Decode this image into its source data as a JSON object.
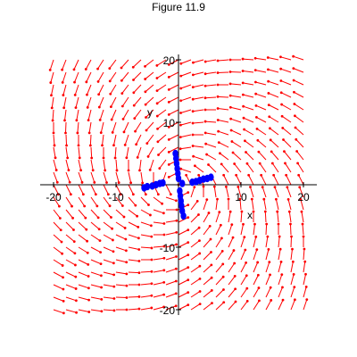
{
  "figure_title": "Figure 11.9",
  "chart_data": {
    "type": "scatter",
    "title": "Figure 11.9",
    "xlabel": "x",
    "ylabel": "y",
    "xlim": [
      -20,
      20
    ],
    "ylim": [
      -20,
      20
    ],
    "x_ticks": [
      -20,
      -10,
      10,
      20
    ],
    "y_ticks": [
      -20,
      -10,
      10,
      20
    ],
    "x_tick_labels": [
      "-20",
      "-10",
      "10",
      "20"
    ],
    "y_tick_labels": [
      "-20",
      "-10",
      "10",
      "20"
    ],
    "grid": false,
    "direction_field": {
      "grid_min": -20,
      "grid_max": 20,
      "count": 20,
      "color": "#ff0000"
    },
    "series": [
      {
        "color": "#0000ff",
        "points": [
          [
            -5.5,
            -0.5
          ],
          [
            -5.0,
            -0.3
          ],
          [
            -4.2,
            -0.2
          ],
          [
            -3.6,
            0.0
          ],
          [
            -3.0,
            0.2
          ],
          [
            -2.5,
            0.3
          ],
          [
            5.2,
            1.2
          ],
          [
            4.6,
            1.0
          ],
          [
            4.0,
            0.9
          ],
          [
            3.4,
            0.7
          ],
          [
            2.8,
            0.5
          ],
          [
            2.2,
            0.4
          ],
          [
            -0.5,
            5.0
          ],
          [
            -0.4,
            4.2
          ],
          [
            -0.3,
            3.4
          ],
          [
            -0.2,
            2.6
          ],
          [
            -0.1,
            1.8
          ],
          [
            0.0,
            1.0
          ],
          [
            0.8,
            -5.0
          ],
          [
            0.6,
            -4.2
          ],
          [
            0.5,
            -3.4
          ],
          [
            0.4,
            -2.6
          ],
          [
            0.3,
            -1.8
          ],
          [
            0.2,
            -1.0
          ],
          [
            0.6,
            0.2
          ]
        ]
      }
    ]
  }
}
